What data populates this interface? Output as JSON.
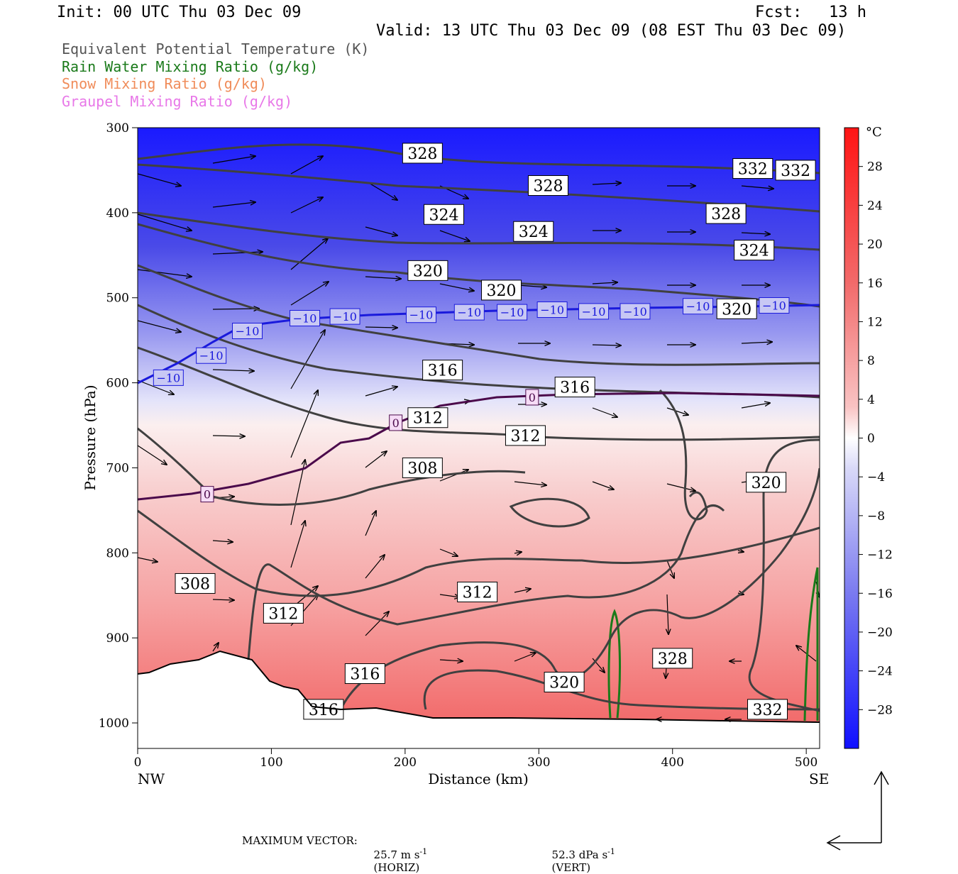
{
  "header": {
    "init": "Init: 00 UTC Thu 03 Dec 09",
    "fcst_label": "Fcst:",
    "fcst_value": "13 h",
    "valid": "Valid: 13 UTC Thu 03 Dec 09 (08 EST Thu 03 Dec 09)"
  },
  "legend": {
    "items": [
      {
        "label": "Equivalent Potential Temperature (K)",
        "color": "#555555"
      },
      {
        "label": "Rain Water Mixing Ratio (g/kg)",
        "color": "#1a7a1a"
      },
      {
        "label": "Snow Mixing Ratio (g/kg)",
        "color": "#f08c5a"
      },
      {
        "label": "Graupel Mixing Ratio (g/kg)",
        "color": "#e878e8"
      }
    ]
  },
  "colors": {
    "theta_e_contour": "#404040",
    "minus10_isotherm": "#1a1adc",
    "zero_isotherm": "#4b0a4b",
    "rain": "#1a7a1a"
  },
  "footer": {
    "max_vector_label": "MAXIMUM VECTOR:",
    "horiz": "25.7 m s",
    "horiz_unit": "(HORIZ)",
    "vert": "52.3 dPa s",
    "vert_unit": "(VERT)",
    "exponent": "-1"
  },
  "chart_data": {
    "type": "heatmap",
    "title": "",
    "xlabel": "Distance (km)",
    "ylabel": "Pressure (hPa)",
    "xlim": [
      0,
      510
    ],
    "ylim": [
      1030,
      300
    ],
    "x_ticks": [
      0,
      100,
      200,
      300,
      400,
      500
    ],
    "y_ticks": [
      300,
      400,
      500,
      600,
      700,
      800,
      900,
      1000
    ],
    "x_end_labels": {
      "left": "NW",
      "right": "SE"
    },
    "colorbar": {
      "unit": "°C",
      "ticks": [
        28,
        24,
        20,
        16,
        12,
        8,
        4,
        0,
        -4,
        -8,
        -12,
        -16,
        -20,
        -24,
        -28
      ]
    },
    "theta_e_labels": [
      {
        "text": "328",
        "x": 213,
        "p": 330
      },
      {
        "text": "328",
        "x": 307,
        "p": 368
      },
      {
        "text": "332",
        "x": 460,
        "p": 348
      },
      {
        "text": "332",
        "x": 492,
        "p": 350
      },
      {
        "text": "324",
        "x": 229,
        "p": 402
      },
      {
        "text": "324",
        "x": 296,
        "p": 422
      },
      {
        "text": "328",
        "x": 440,
        "p": 401
      },
      {
        "text": "324",
        "x": 461,
        "p": 444
      },
      {
        "text": "320",
        "x": 217,
        "p": 468
      },
      {
        "text": "320",
        "x": 272,
        "p": 491
      },
      {
        "text": "320",
        "x": 448,
        "p": 513
      },
      {
        "text": "316",
        "x": 228,
        "p": 585
      },
      {
        "text": "316",
        "x": 327,
        "p": 605
      },
      {
        "text": "312",
        "x": 217,
        "p": 641
      },
      {
        "text": "312",
        "x": 290,
        "p": 662
      },
      {
        "text": "308",
        "x": 213,
        "p": 700
      },
      {
        "text": "320",
        "x": 470,
        "p": 717
      },
      {
        "text": "308",
        "x": 43,
        "p": 836
      },
      {
        "text": "312",
        "x": 254,
        "p": 846
      },
      {
        "text": "312",
        "x": 109,
        "p": 871
      },
      {
        "text": "328",
        "x": 400,
        "p": 924
      },
      {
        "text": "316",
        "x": 170,
        "p": 942
      },
      {
        "text": "320",
        "x": 319,
        "p": 952
      },
      {
        "text": "316",
        "x": 139,
        "p": 984
      },
      {
        "text": "332",
        "x": 471,
        "p": 984
      }
    ],
    "isotherm_labels": [
      {
        "text": "-10",
        "x": 23,
        "p": 594
      },
      {
        "text": "-10",
        "x": 55,
        "p": 568
      },
      {
        "text": "-10",
        "x": 82,
        "p": 539
      },
      {
        "text": "-10",
        "x": 125,
        "p": 524
      },
      {
        "text": "-10",
        "x": 155,
        "p": 522
      },
      {
        "text": "-10",
        "x": 212,
        "p": 520
      },
      {
        "text": "-10",
        "x": 248,
        "p": 517
      },
      {
        "text": "-10",
        "x": 280,
        "p": 517
      },
      {
        "text": "-10",
        "x": 310,
        "p": 514
      },
      {
        "text": "-10",
        "x": 341,
        "p": 516
      },
      {
        "text": "-10",
        "x": 372,
        "p": 516
      },
      {
        "text": "-10",
        "x": 419,
        "p": 510
      },
      {
        "text": "-10",
        "x": 476,
        "p": 509
      },
      {
        "text": "0",
        "x": 193,
        "p": 647
      },
      {
        "text": "0",
        "x": 295,
        "p": 617
      },
      {
        "text": "0",
        "x": 52,
        "p": 731
      }
    ]
  }
}
